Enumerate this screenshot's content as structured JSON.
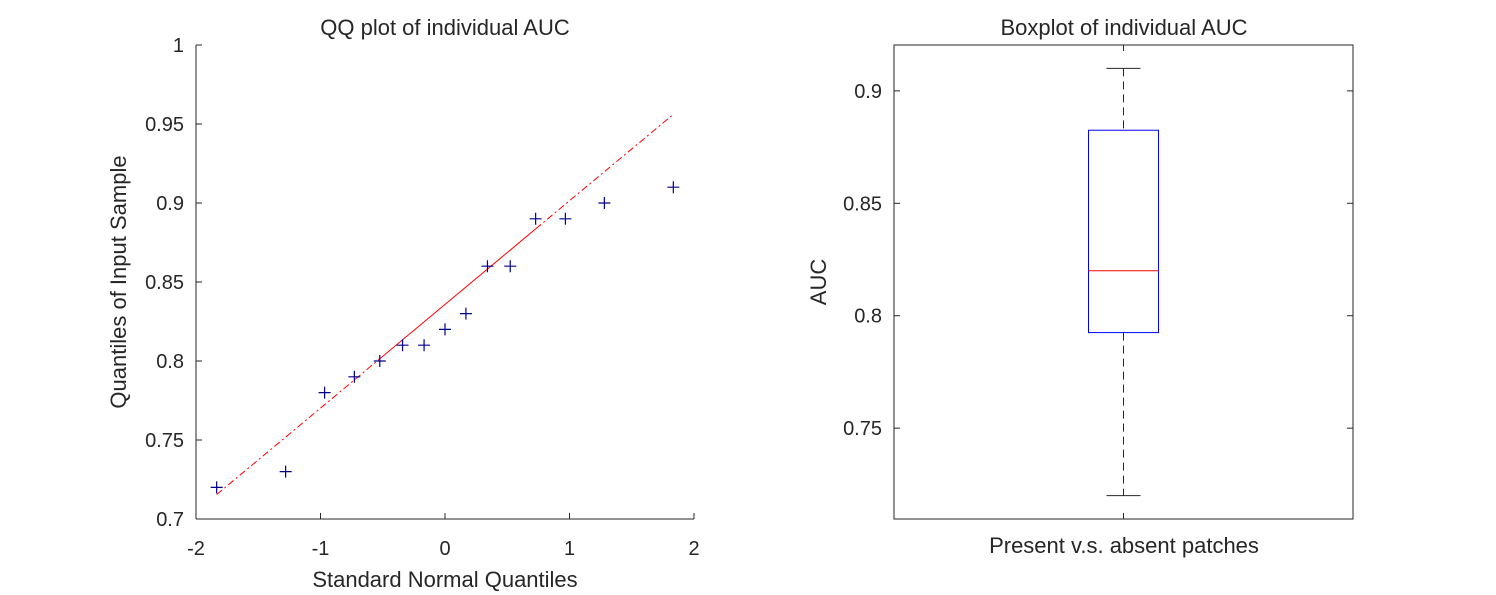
{
  "chart_data": [
    {
      "type": "scatter",
      "title": "QQ plot of individual AUC",
      "xlabel": "Standard Normal Quantiles",
      "ylabel": "Quantiles of Input Sample",
      "xlim": [
        -2,
        2
      ],
      "ylim": [
        0.7,
        1.0
      ],
      "xticks": [
        "-2",
        "-1",
        "0",
        "1",
        "2"
      ],
      "yticks": [
        "0.7",
        "0.75",
        "0.8",
        "0.85",
        "0.9",
        "0.95",
        "1"
      ],
      "points_x": [
        -1.834,
        -1.28,
        -0.967,
        -0.728,
        -0.524,
        -0.341,
        -0.168,
        0.0,
        0.168,
        0.341,
        0.524,
        0.728,
        0.967,
        1.28,
        1.834
      ],
      "points_y": [
        0.72,
        0.73,
        0.78,
        0.79,
        0.8,
        0.81,
        0.81,
        0.82,
        0.83,
        0.86,
        0.86,
        0.89,
        0.89,
        0.9,
        0.91
      ],
      "marker": "+",
      "marker_color": "#00008b",
      "reference_line": {
        "segments": [
          {
            "style": "dashdot",
            "x": [
              -1.834,
              -0.524
            ],
            "y": [
              0.7155,
              0.8014
            ]
          },
          {
            "style": "solid",
            "x": [
              -0.524,
              0.728
            ],
            "y": [
              0.8014,
              0.8836
            ]
          },
          {
            "style": "dashdot",
            "x": [
              0.728,
              1.834
            ],
            "y": [
              0.8836,
              0.9561
            ]
          }
        ],
        "color": "#ff0000"
      },
      "grid": false
    },
    {
      "type": "box",
      "title": "Boxplot of individual AUC",
      "xlabel": "Present v.s. absent patches",
      "ylabel": "AUC",
      "ylim": [
        0.7096,
        0.9204
      ],
      "yticks": [
        "0.75",
        "0.8",
        "0.85",
        "0.9"
      ],
      "stats": {
        "min": 0.72,
        "q1": 0.7925,
        "median": 0.82,
        "q3": 0.8825,
        "max": 0.91
      },
      "box_color": "#0000ff",
      "median_color": "#ff0000",
      "whisker_color": "#262626",
      "grid": false
    }
  ]
}
